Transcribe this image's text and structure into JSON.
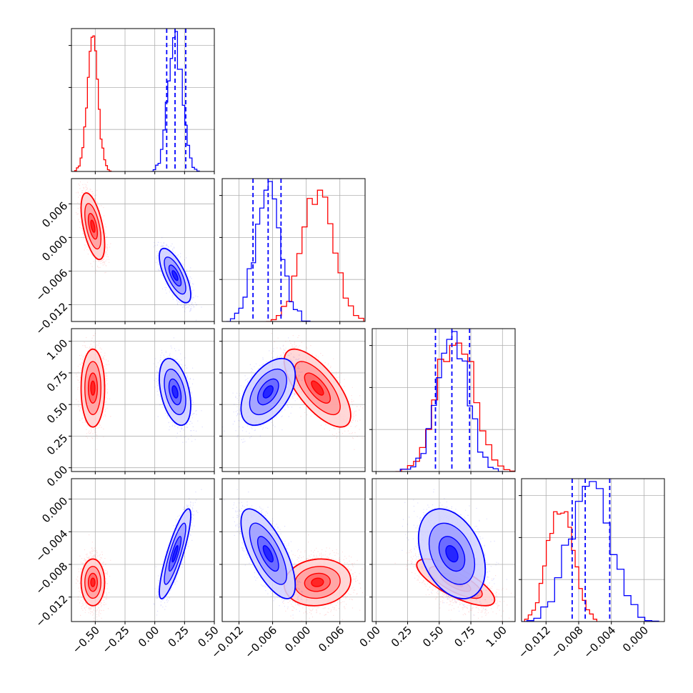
{
  "chart_data": {
    "type": "corner",
    "title": "",
    "grid": true,
    "parameters": [
      {
        "axis_range": [
          -0.7,
          0.5
        ],
        "ticks": [
          -0.5,
          -0.25,
          0.0,
          0.25,
          0.5
        ],
        "tick_labels": [
          "−0.50",
          "−0.25",
          "0.00",
          "0.25",
          "0.50"
        ]
      },
      {
        "axis_range": [
          -0.015,
          0.0105
        ],
        "ticks": [
          -0.012,
          -0.006,
          0.0,
          0.006
        ],
        "tick_labels": [
          "−0.012",
          "−0.006",
          "0.000",
          "0.006"
        ]
      },
      {
        "axis_range": [
          -0.03,
          1.1
        ],
        "ticks": [
          0.0,
          0.25,
          0.5,
          0.75,
          1.0
        ],
        "tick_labels": [
          "0.00",
          "0.25",
          "0.50",
          "0.75",
          "1.00"
        ]
      },
      {
        "axis_range": [
          -0.015,
          0.0025
        ],
        "ticks": [
          -0.012,
          -0.008,
          -0.004,
          0.0
        ],
        "tick_labels": [
          "−0.012",
          "−0.008",
          "−0.004",
          "0.000"
        ]
      }
    ],
    "series": [
      {
        "color": "#ff0000",
        "mean": [
          -0.52,
          0.002,
          0.63,
          -0.0102
        ],
        "std": [
          0.045,
          0.0027,
          0.14,
          0.0013
        ],
        "correlation": [
          [
            1.0,
            -0.55,
            0.0,
            0.0
          ],
          [
            -0.55,
            1.0,
            -0.7,
            0.1
          ],
          [
            0.0,
            -0.7,
            1.0,
            -0.75
          ],
          [
            0.0,
            0.1,
            -0.75,
            1.0
          ]
        ],
        "quantiles": null
      },
      {
        "color": "#0000ff",
        "mean": [
          0.17,
          -0.0068,
          0.6,
          -0.0067
        ],
        "std": [
          0.06,
          0.0022,
          0.12,
          0.0025
        ],
        "correlation": [
          [
            1.0,
            -0.7,
            -0.4,
            0.85
          ],
          [
            -0.7,
            1.0,
            0.5,
            -0.7
          ],
          [
            -0.4,
            0.5,
            1.0,
            -0.35
          ],
          [
            0.85,
            -0.7,
            -0.35,
            1.0
          ]
        ],
        "quantiles": [
          [
            0.1,
            0.17,
            0.26
          ],
          [
            -0.0095,
            -0.0068,
            -0.0045
          ],
          [
            0.47,
            0.6,
            0.74
          ],
          [
            -0.0088,
            -0.0072,
            -0.0042
          ]
        ]
      }
    ],
    "histogram_bins": 20,
    "contour_levels": [
      0.4,
      0.85,
      1.5,
      2.2
    ],
    "colors": {
      "red": "#ff0000",
      "blue": "#0000ff",
      "grid": "#b0b0b0",
      "frame": "#000000"
    }
  }
}
